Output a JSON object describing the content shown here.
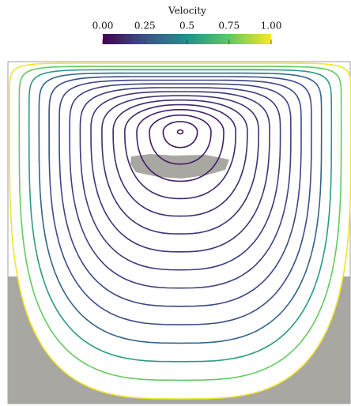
{
  "chart_data": {
    "type": "contour",
    "title": "Velocity",
    "colormap": [
      "#440154",
      "#3b528b",
      "#21918c",
      "#5ec962",
      "#fde725"
    ],
    "clim": [
      0,
      1
    ],
    "cticks": [
      {
        "value": 0,
        "label": "0.00"
      },
      0.25,
      0.5,
      0.75,
      {
        "value": 1,
        "label": "1.00"
      }
    ]
  }
}
